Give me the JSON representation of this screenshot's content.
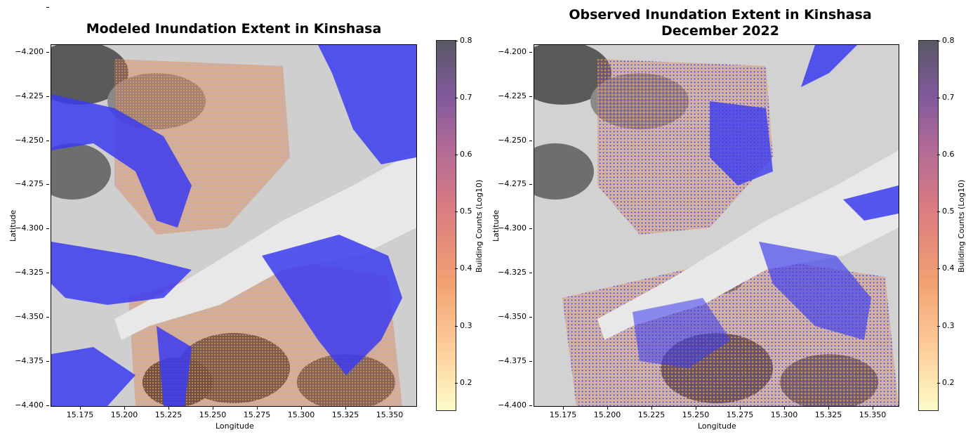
{
  "left_panel": {
    "title": "Modeled Inundation Extent in Kinshasa",
    "xlabel": "Longitude",
    "ylabel": "Latitude",
    "colorbar_label": "Building Counts (Log10)"
  },
  "right_panel": {
    "title": "Observed Inundation Extent in Kinshasa\nDecember 2022",
    "xlabel": "Longitude",
    "ylabel": "Latitude",
    "colorbar_label": "Building Counts (Log10)"
  },
  "y_ticks": [
    "−4.200",
    "−4.225",
    "−4.250",
    "−4.275",
    "−4.300",
    "−4.325",
    "−4.350",
    "−4.375",
    "−4.400"
  ],
  "x_ticks": [
    "15.175",
    "15.200",
    "15.225",
    "15.250",
    "15.275",
    "15.300",
    "15.325",
    "15.350"
  ],
  "colorbar_ticks": [
    "0.8",
    "0.7",
    "0.6",
    "0.5",
    "0.4",
    "0.3",
    "0.2"
  ],
  "colors": {
    "flood": "#3b3bf0",
    "river": "#e6e6e6",
    "terrain_dark": "#2a2a2a",
    "buildings": "#d9745a"
  }
}
